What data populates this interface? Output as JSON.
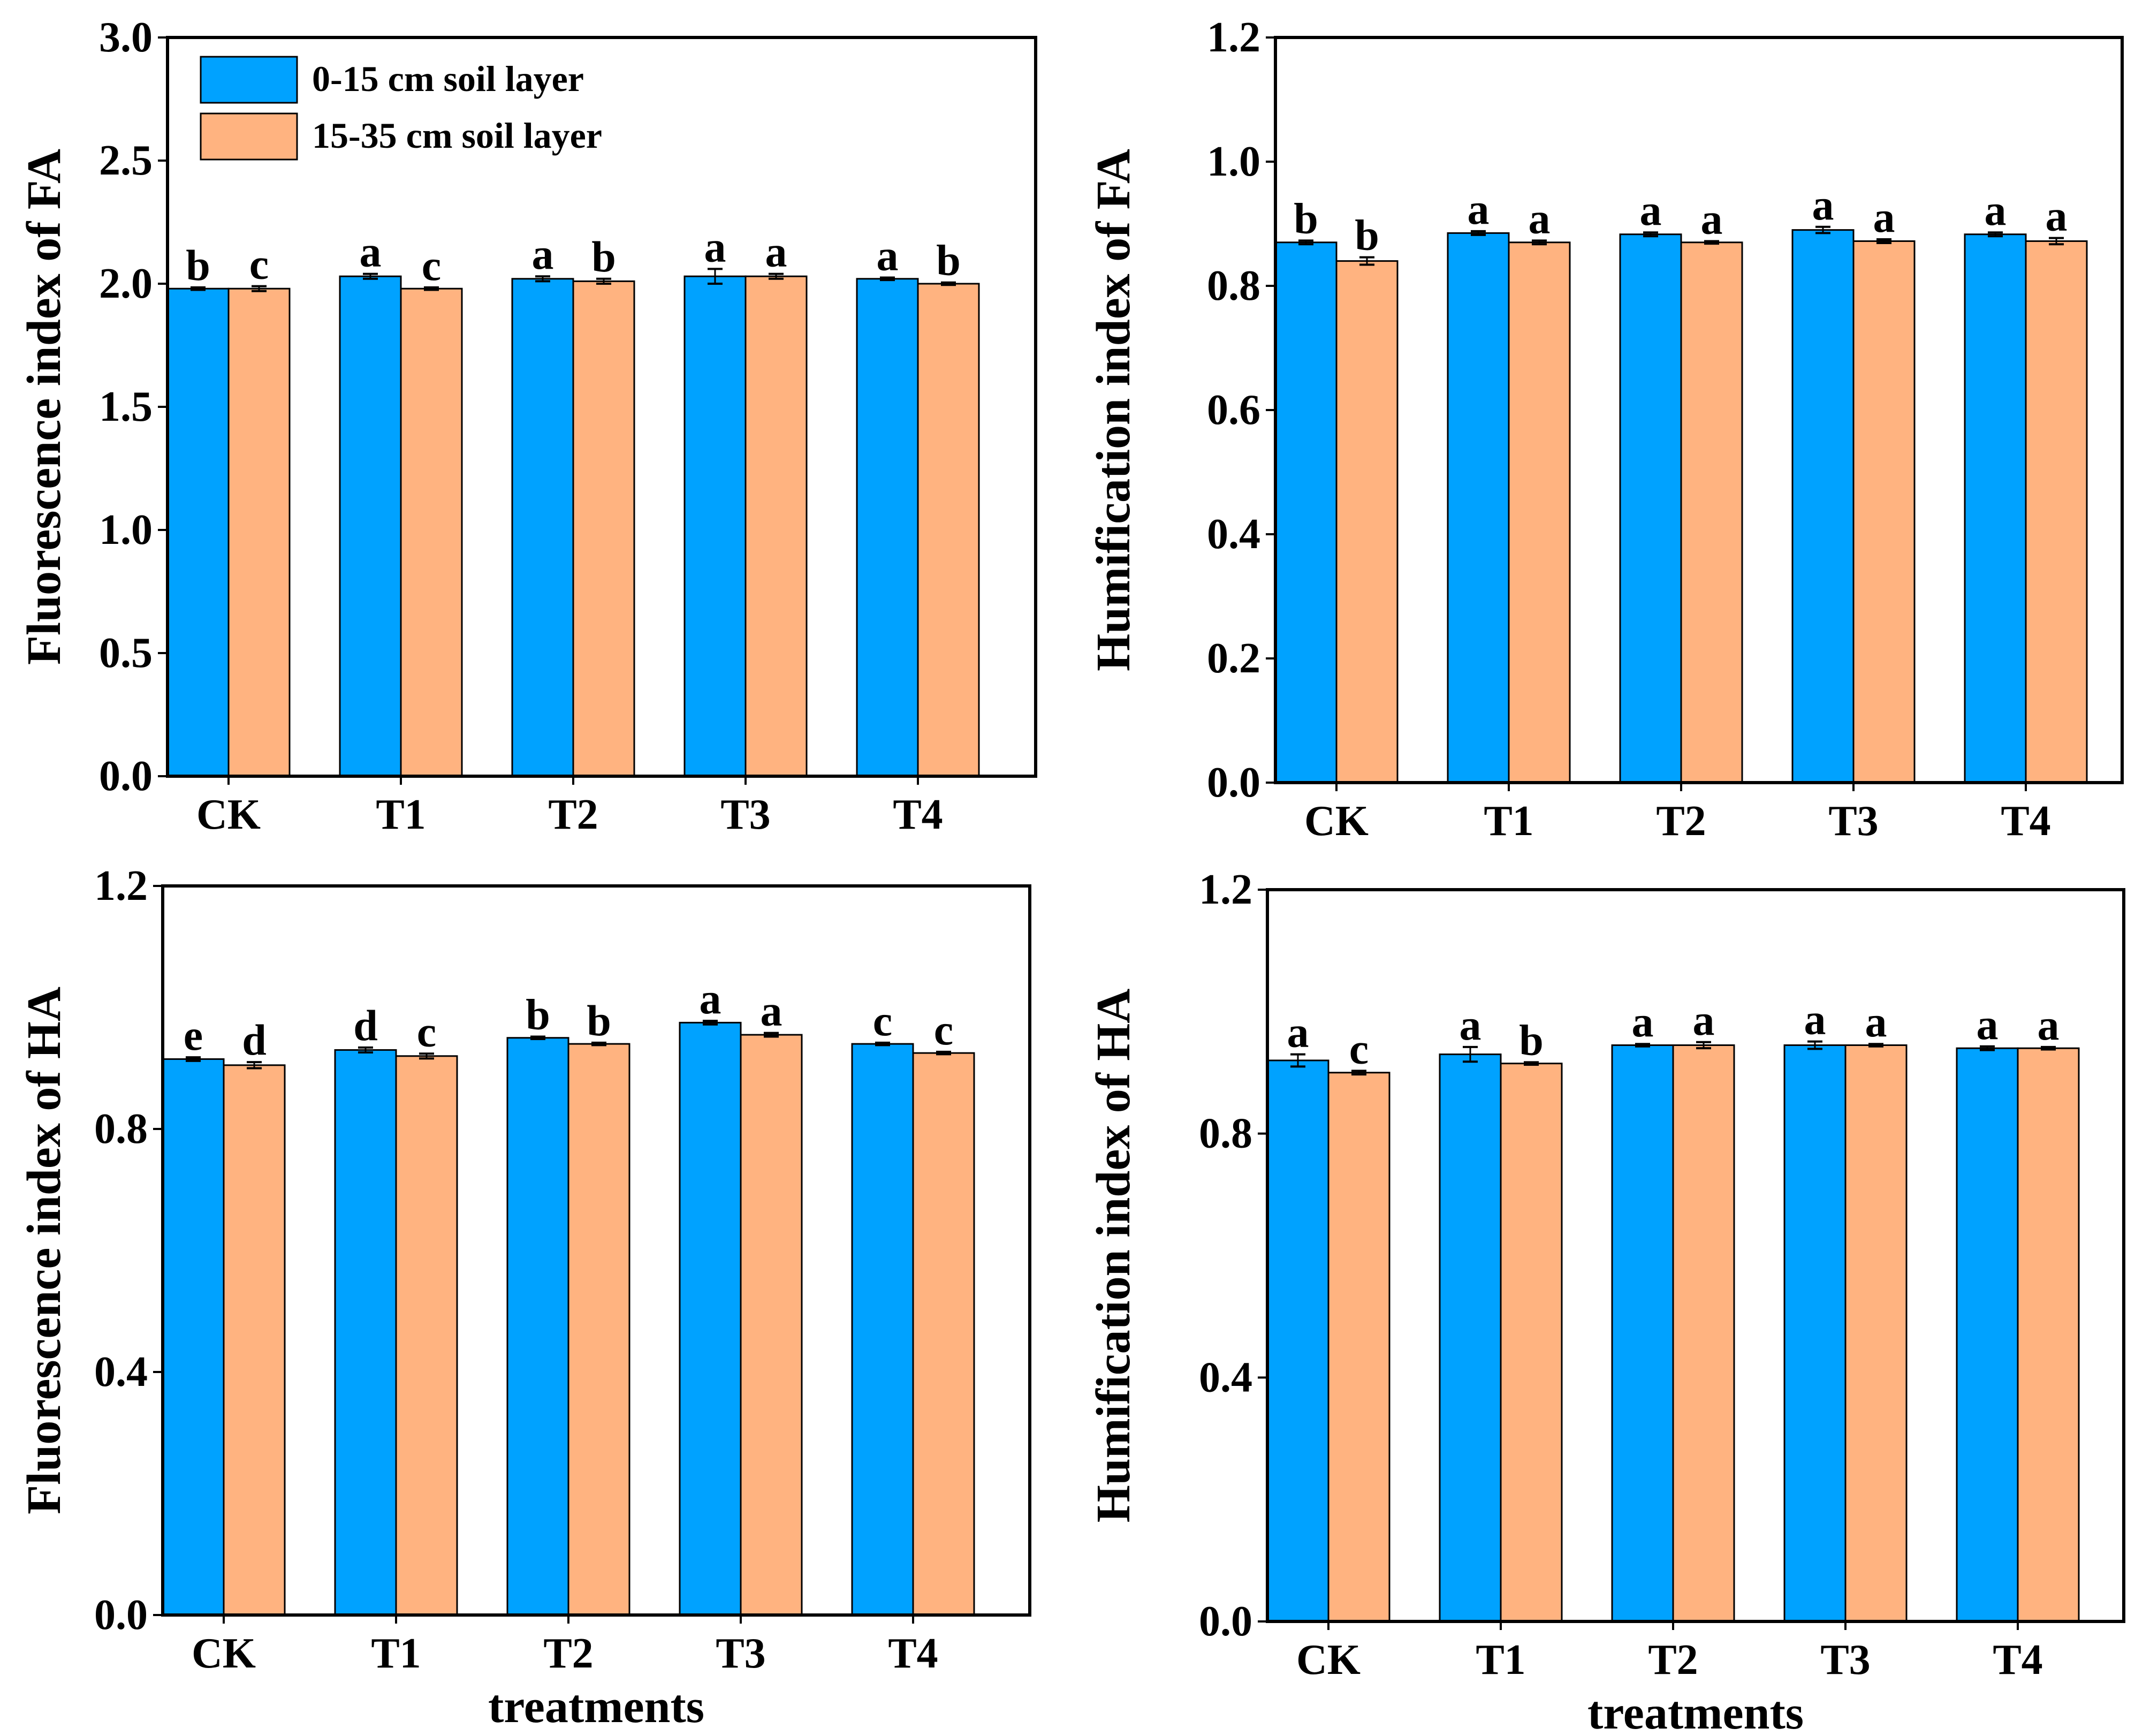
{
  "colors": {
    "series_0_15": "#00A2FF",
    "series_15_35": "#FFB380",
    "axis": "#000000",
    "background": "#FFFFFF"
  },
  "legend": {
    "entries": [
      "0-15 cm soil layer",
      "15-35 cm soil layer"
    ]
  },
  "chart_data": [
    {
      "type": "bar",
      "id": "fa-fluorescence",
      "title": "",
      "xlabel": "",
      "ylabel": "Fluorescence index of FA",
      "ylim": [
        0,
        3.0
      ],
      "yticks": [
        0.0,
        0.5,
        1.0,
        1.5,
        2.0,
        2.5,
        3.0
      ],
      "ytick_labels": [
        "0.0",
        "0.5",
        "1.0",
        "1.5",
        "2.0",
        "2.5",
        "3.0"
      ],
      "categories": [
        "CK",
        "T1",
        "T2",
        "T3",
        "T4"
      ],
      "legend_position": "top-left",
      "series": [
        {
          "name": "0-15 cm soil layer",
          "values": [
            1.98,
            2.03,
            2.02,
            2.03,
            2.02
          ],
          "errors": [
            0.005,
            0.01,
            0.01,
            0.03,
            0.005
          ],
          "labels": [
            "b",
            "a",
            "a",
            "a",
            "a"
          ]
        },
        {
          "name": "15-35 cm soil layer",
          "values": [
            1.98,
            1.98,
            2.01,
            2.03,
            2.0
          ],
          "errors": [
            0.01,
            0.005,
            0.01,
            0.01,
            0.005
          ],
          "labels": [
            "c",
            "c",
            "b",
            "a",
            "b"
          ]
        }
      ]
    },
    {
      "type": "bar",
      "id": "fa-humification",
      "title": "",
      "xlabel": "",
      "ylabel": "Humification index of FA",
      "ylim": [
        0,
        1.2
      ],
      "yticks": [
        0.0,
        0.2,
        0.4,
        0.6,
        0.8,
        1.0,
        1.2
      ],
      "ytick_labels": [
        "0.0",
        "0.2",
        "0.4",
        "0.6",
        "0.8",
        "1.0",
        "1.2"
      ],
      "categories": [
        "CK",
        "T1",
        "T2",
        "T3",
        "T4"
      ],
      "series": [
        {
          "name": "0-15 cm soil layer",
          "values": [
            0.87,
            0.885,
            0.883,
            0.89,
            0.883
          ],
          "errors": [
            0.003,
            0.003,
            0.003,
            0.005,
            0.003
          ],
          "labels": [
            "b",
            "a",
            "a",
            "a",
            "a"
          ]
        },
        {
          "name": "15-35 cm soil layer",
          "values": [
            0.84,
            0.87,
            0.87,
            0.872,
            0.872
          ],
          "errors": [
            0.006,
            0.003,
            0.002,
            0.003,
            0.005
          ],
          "labels": [
            "b",
            "a",
            "a",
            "a",
            "a"
          ]
        }
      ]
    },
    {
      "type": "bar",
      "id": "ha-fluorescence",
      "title": "",
      "xlabel": "treatments",
      "ylabel": "Fluorescence index of HA",
      "ylim": [
        0,
        1.2
      ],
      "yticks": [
        0.0,
        0.4,
        0.8,
        1.2
      ],
      "ytick_labels": [
        "0.0",
        "0.4",
        "0.8",
        "1.2"
      ],
      "categories": [
        "CK",
        "T1",
        "T2",
        "T3",
        "T4"
      ],
      "series": [
        {
          "name": "0-15 cm soil layer",
          "values": [
            0.915,
            0.93,
            0.95,
            0.975,
            0.94
          ],
          "errors": [
            0.003,
            0.004,
            0.002,
            0.003,
            0.002
          ],
          "labels": [
            "e",
            "d",
            "b",
            "a",
            "c"
          ]
        },
        {
          "name": "15-35 cm soil layer",
          "values": [
            0.905,
            0.92,
            0.94,
            0.955,
            0.925
          ],
          "errors": [
            0.005,
            0.004,
            0.002,
            0.003,
            0.002
          ],
          "labels": [
            "d",
            "c",
            "b",
            "a",
            "c"
          ]
        }
      ]
    },
    {
      "type": "bar",
      "id": "ha-humification",
      "title": "",
      "xlabel": "treatments",
      "ylabel": "Humification index of HA",
      "ylim": [
        0,
        1.2
      ],
      "yticks": [
        0.0,
        0.4,
        0.8,
        1.2
      ],
      "ytick_labels": [
        "0.0",
        "0.4",
        "0.8",
        "1.2"
      ],
      "categories": [
        "CK",
        "T1",
        "T2",
        "T3",
        "T4"
      ],
      "series": [
        {
          "name": "0-15 cm soil layer",
          "values": [
            0.92,
            0.93,
            0.945,
            0.945,
            0.94
          ],
          "errors": [
            0.01,
            0.012,
            0.002,
            0.006,
            0.003
          ],
          "labels": [
            "a",
            "a",
            "a",
            "a",
            "a"
          ]
        },
        {
          "name": "15-35 cm soil layer",
          "values": [
            0.9,
            0.915,
            0.945,
            0.945,
            0.94
          ],
          "errors": [
            0.003,
            0.002,
            0.005,
            0.002,
            0.002
          ],
          "labels": [
            "c",
            "b",
            "a",
            "a",
            "a"
          ]
        }
      ]
    }
  ]
}
